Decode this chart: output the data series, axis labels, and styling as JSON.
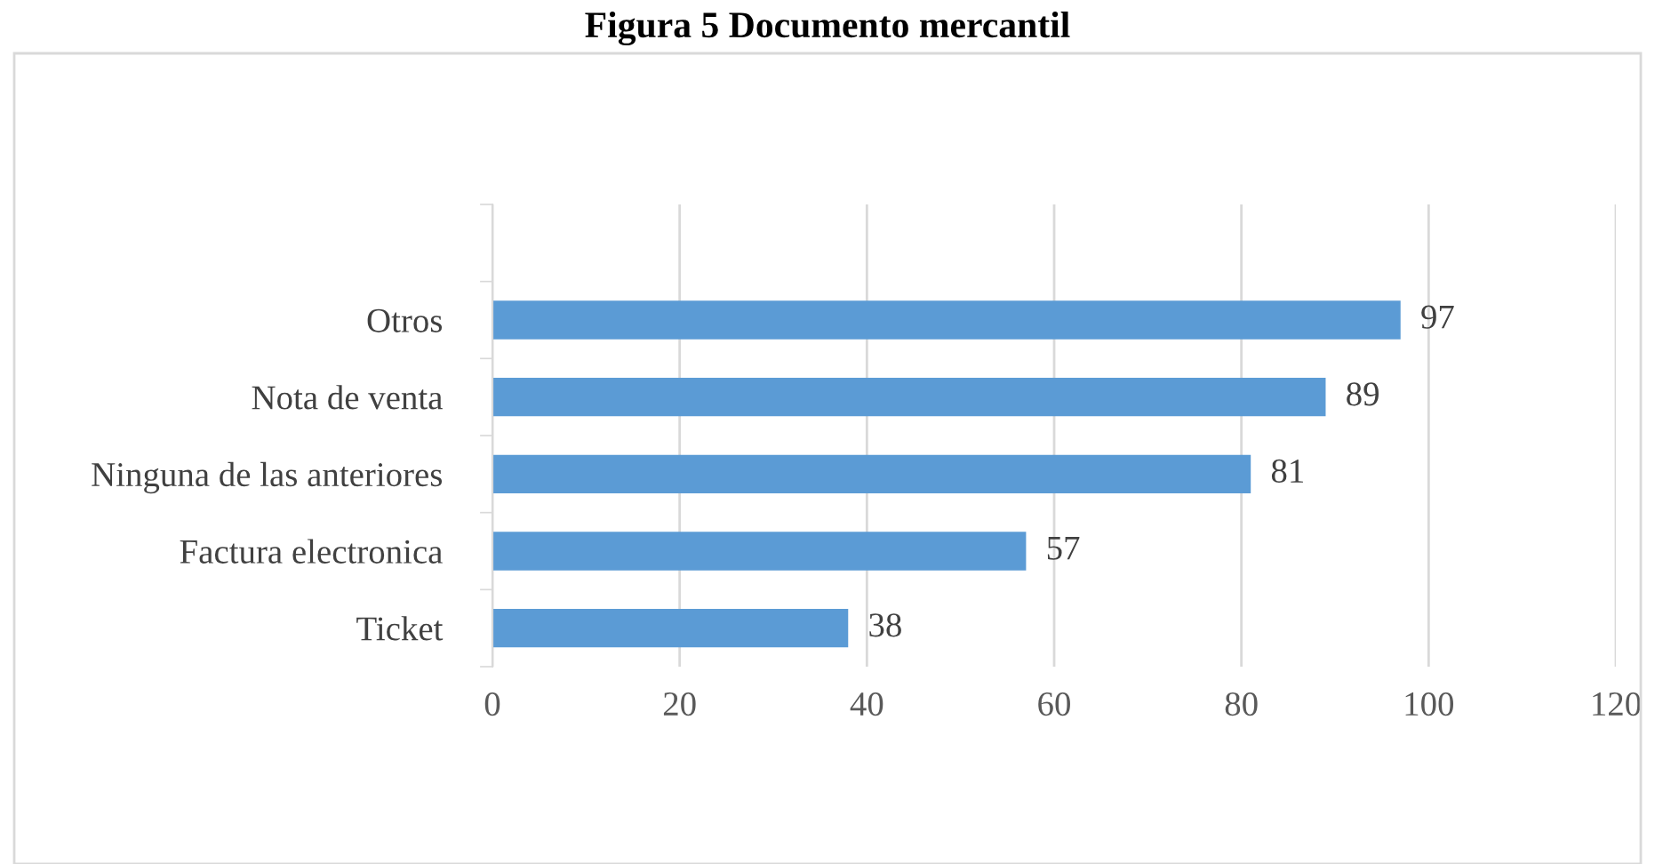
{
  "chart_data": {
    "type": "bar",
    "orientation": "horizontal",
    "title": "Figura 5 Documento mercantil",
    "categories": [
      null,
      "Otros",
      "Nota de venta",
      "Ninguna de las anteriores",
      "Factura electronica",
      "Ticket"
    ],
    "values": [
      null,
      97,
      89,
      81,
      57,
      38
    ],
    "color": "#5b9bd5",
    "xlim": [
      0,
      120
    ],
    "xticks": [
      0,
      20,
      40,
      60,
      80,
      100,
      120
    ],
    "grid": "x",
    "data_labels": true
  }
}
